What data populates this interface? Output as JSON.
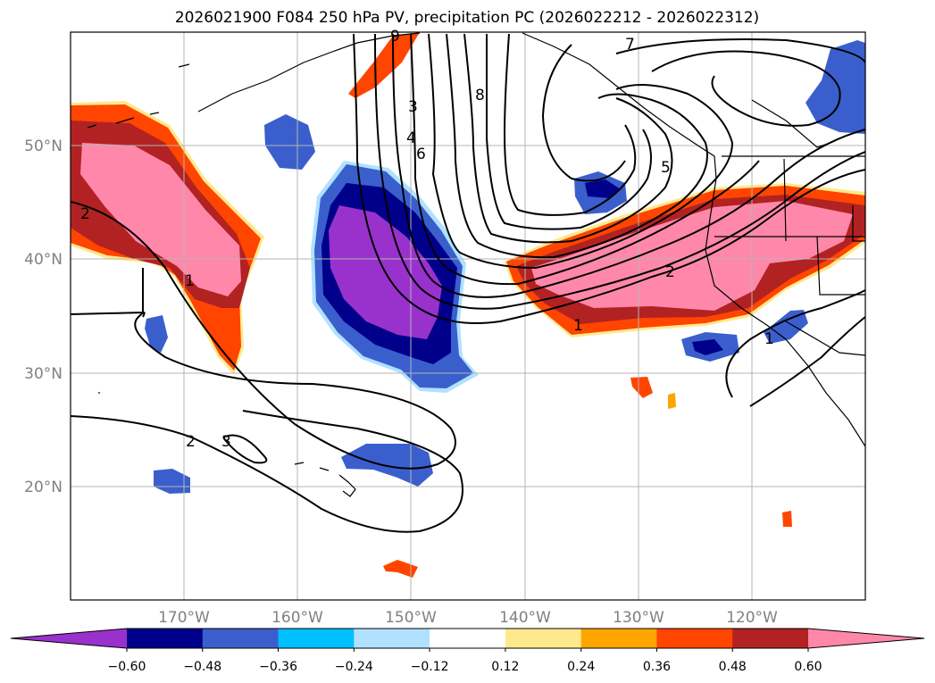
{
  "title": "2026021900 F084 250 hPa PV, precipitation PC (2026022212 - 2026022312)",
  "map": {
    "lon_range": [
      "180°",
      "110°W"
    ],
    "lat_range": [
      "10°N",
      "60°N"
    ],
    "gridlines": true,
    "lon_ticks": [
      {
        "label": "170°W",
        "lon": -170
      },
      {
        "label": "160°W",
        "lon": -160
      },
      {
        "label": "150°W",
        "lon": -150
      },
      {
        "label": "140°W",
        "lon": -140
      },
      {
        "label": "130°W",
        "lon": -130
      },
      {
        "label": "120°W",
        "lon": -120
      }
    ],
    "lat_ticks": [
      {
        "label": "50°N",
        "lat": 50
      },
      {
        "label": "40°N",
        "lat": 40
      },
      {
        "label": "30°N",
        "lat": 30
      },
      {
        "label": "20°N",
        "lat": 20
      }
    ],
    "pv_contour_labels": [
      "1",
      "2",
      "2",
      "3",
      "3",
      "4",
      "5",
      "6",
      "7",
      "8",
      "9",
      "1",
      "2",
      "1"
    ]
  },
  "colorbar": {
    "extend": "both",
    "ticks": [
      "−0.60",
      "−0.48",
      "−0.36",
      "−0.24",
      "−0.12",
      "0.12",
      "0.24",
      "0.36",
      "0.48",
      "0.60"
    ],
    "colors": [
      "#9932cc",
      "#00008b",
      "#3a5fcd",
      "#00bfff",
      "#b0e2ff",
      "#ffffff",
      "#ffe98c",
      "#ffa500",
      "#ff4500",
      "#b22222",
      "#ff88aa"
    ]
  }
}
